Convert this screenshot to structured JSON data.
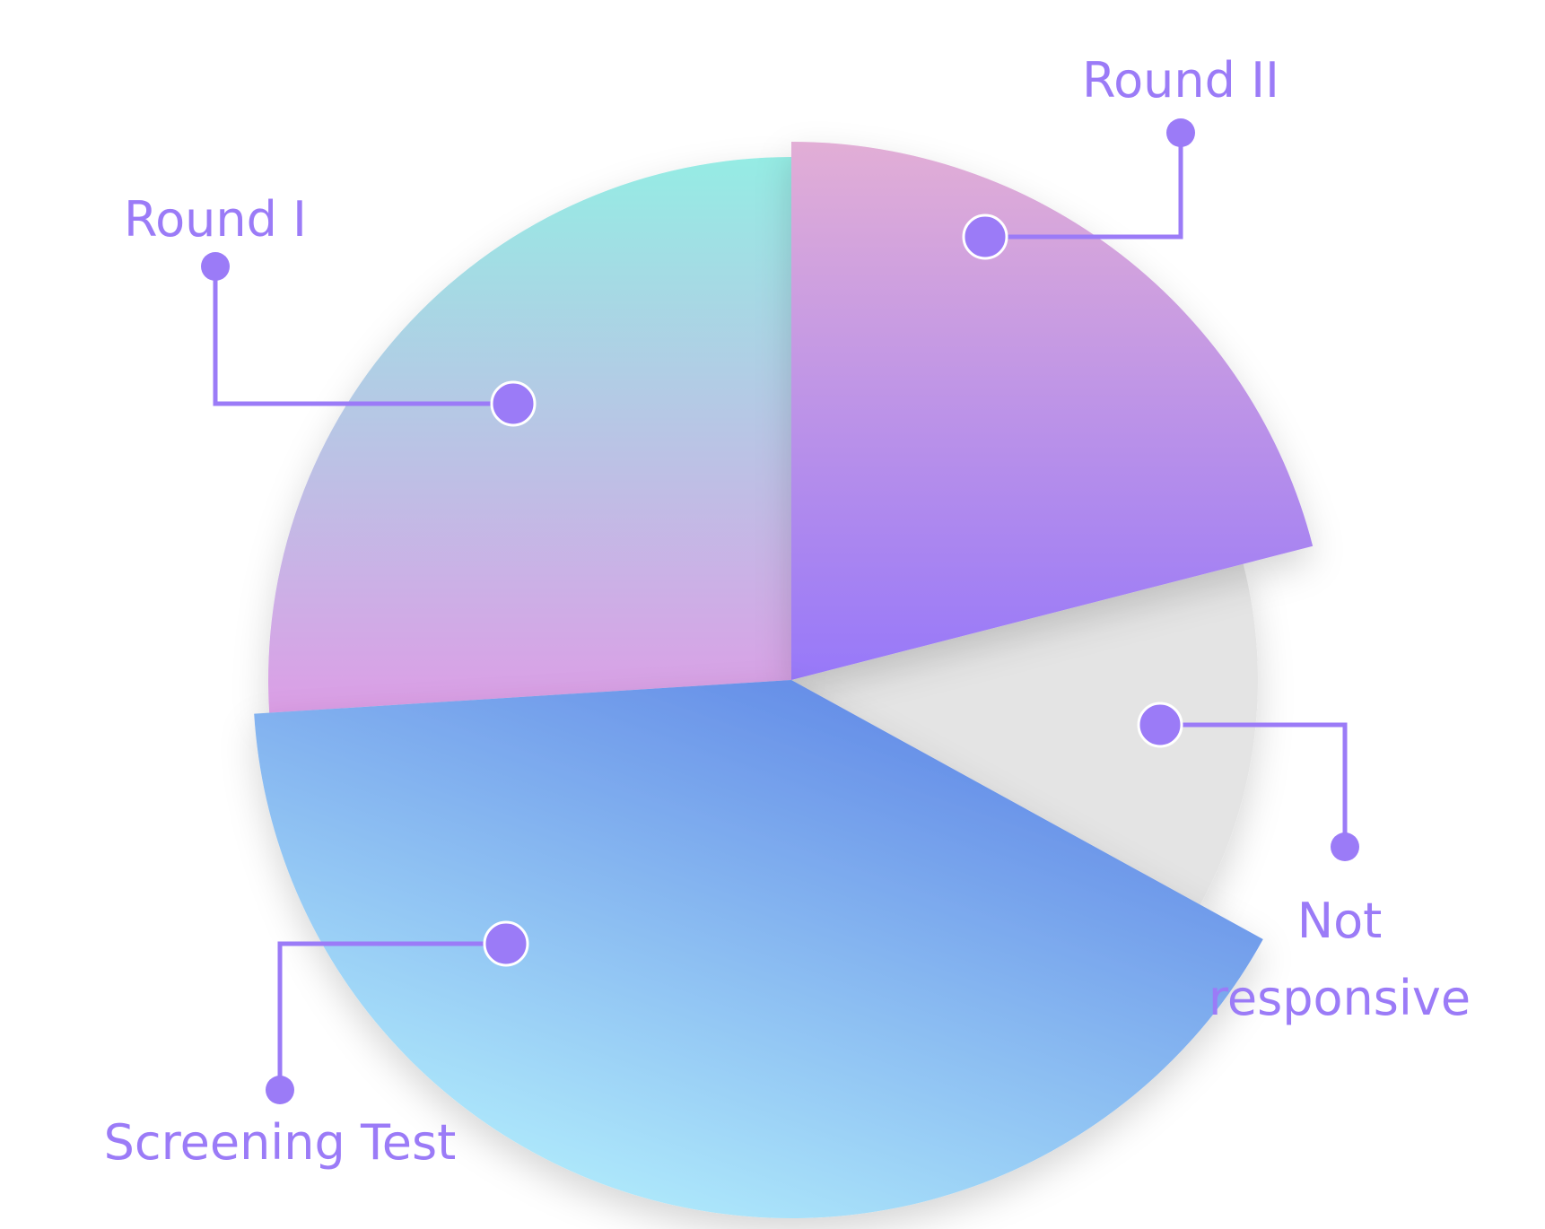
{
  "chart_data": {
    "type": "pie",
    "labels": [
      "Round I",
      "Round II",
      "Not responsive",
      "Screening Test"
    ],
    "values": [
      26,
      21,
      12,
      41
    ],
    "legend": "callouts",
    "colors": {
      "round_1": [
        "#95ece4",
        "#dc9ee6"
      ],
      "round_2": [
        "#e2aed6",
        "#9778f9"
      ],
      "not_responsive": [
        "#e4e4e4",
        "#e4e4e4"
      ],
      "screening_test": [
        "#b5f1fd",
        "#5f86e6"
      ],
      "accent": "#9b7bf7"
    }
  }
}
